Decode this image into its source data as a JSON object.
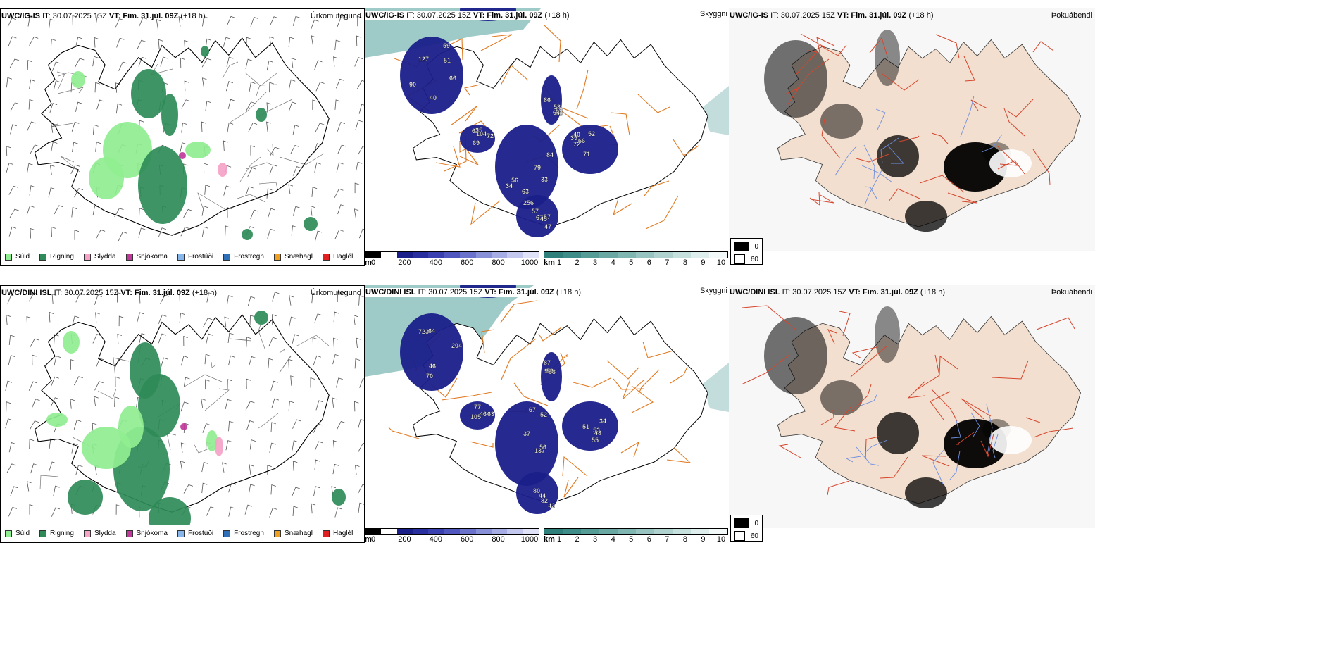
{
  "colors": {
    "Súld": "#90ee90",
    "Rigning": "#2e8b57",
    "Slydda": "#f5a3c7",
    "Snjókoma": "#c0399a",
    "Frostúði": "#87b7ea",
    "Frostregn": "#2f6fb8",
    "Snæhagl": "#f0a020",
    "Haglél": "#e02020",
    "coast": "#000000",
    "road_orange": "#e07a22",
    "road_red": "#d6452c",
    "river_blue": "#6f8fe0",
    "land_beige": "#f2dfcf",
    "cloud_navy": "#1a1f8a",
    "teal_vis": "#4f9e9a"
  },
  "rows": [
    {
      "precip": {
        "model": "UWC/IG-IS",
        "it": "IT: 30.07.2025 15Z",
        "vt_label": "VT:",
        "vt": "Fim. 31.júl. 09Z",
        "lead": "(+18 h)",
        "field": "Úrkomutegund"
      },
      "cloud": {
        "model": "UWC/IG-IS",
        "it": "IT: 30.07.2025 15Z",
        "vt_label": "VT:",
        "vt": "Fim. 31.júl. 09Z",
        "lead": "(+18 h)",
        "field": "Skyggni",
        "labels": [
          "127",
          "141",
          "63",
          "72",
          "57",
          "49",
          "69",
          "90",
          "55",
          "56",
          "52",
          "67",
          "86",
          "62",
          "40",
          "51",
          "84",
          "71",
          "256",
          "58",
          "35",
          "66",
          "41",
          "34",
          "39",
          "47",
          "64",
          "72",
          "51",
          "31",
          "79",
          "66",
          "45",
          "59",
          "104",
          "59",
          "40",
          "33",
          "40",
          "57"
        ]
      },
      "fog": {
        "model": "UWC/IG-IS",
        "it": "IT: 30.07.2025 15Z",
        "vt_label": "VT:",
        "vt": "Fim. 31.júl. 09Z",
        "lead": "(+18 h)",
        "field": "Þokuábendi"
      }
    },
    {
      "precip": {
        "model": "UWC/DINI ISL",
        "it": "IT: 30.07.2025 15Z",
        "vt_label": "VT:",
        "vt": "Fim. 31.júl. 09Z",
        "lead": "(+18 h)",
        "field": "Úrkomutegund"
      },
      "cloud": {
        "model": "UWC/DINI ISL",
        "it": "IT: 30.07.2025 15Z",
        "vt_label": "VT:",
        "vt": "Fim. 31.júl. 09Z",
        "lead": "(+18 h)",
        "field": "Skyggni",
        "labels": [
          "204",
          "165",
          "67",
          "55",
          "42",
          "87",
          "77",
          "64",
          "70",
          "56",
          "51",
          "82",
          "98",
          "63",
          "70",
          "393",
          "37",
          "48",
          "44",
          "53",
          "46",
          "46",
          "125",
          "137",
          "53",
          "80",
          "59",
          "105",
          "723",
          "63",
          "52",
          "34"
        ]
      },
      "fog": {
        "model": "UWC/DINI ISL",
        "it": "IT: 30.07.2025 15Z",
        "vt_label": "VT:",
        "vt": "Fim. 31.júl. 09Z",
        "lead": "(+18 h)",
        "field": "Þokuábendi"
      }
    }
  ],
  "precip_legend": [
    "Súld",
    "Rigning",
    "Slydda",
    "Snjókoma",
    "Frostúði",
    "Frostregn",
    "Snæhagl",
    "Haglél"
  ],
  "cloud_colorbar": {
    "unit": "m",
    "ticks": [
      "0",
      "200",
      "400",
      "600",
      "800",
      "1000"
    ]
  },
  "vis_colorbar": {
    "unit": "km",
    "ticks": [
      "1",
      "2",
      "3",
      "4",
      "5",
      "6",
      "7",
      "8",
      "9",
      "10"
    ]
  },
  "fog_legend": {
    "values": [
      "0",
      "60"
    ]
  }
}
